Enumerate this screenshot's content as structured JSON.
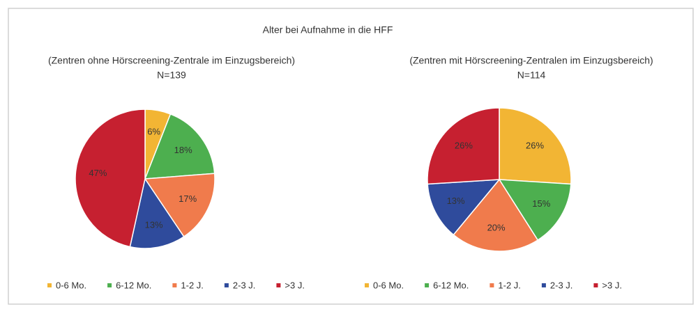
{
  "title": "Alter bei Aufnahme in die HFF",
  "chart_data": [
    {
      "type": "pie",
      "title": "(Zentren ohne Hörscreening-Zentrale im Einzugsbereich)",
      "subtitle": "N=139",
      "categories": [
        "0-6 Mo.",
        "6-12 Mo.",
        "1-2 J.",
        "2-3 J.",
        ">3 J."
      ],
      "values": [
        6,
        18,
        17,
        13,
        47
      ],
      "value_labels": [
        "6%",
        "18%",
        "17%",
        "13%",
        "47%"
      ],
      "colors": [
        "#f2b534",
        "#4daf4f",
        "#f07b4c",
        "#2f4b9c",
        "#c62030"
      ]
    },
    {
      "type": "pie",
      "title": "(Zentren mit Hörscreening-Zentralen im Einzugsbereich)",
      "subtitle": "N=114",
      "categories": [
        "0-6 Mo.",
        "6-12 Mo.",
        "1-2 J.",
        "2-3 J.",
        ">3 J."
      ],
      "values": [
        26,
        15,
        20,
        13,
        26
      ],
      "value_labels": [
        "26%",
        "15%",
        "20%",
        "13%",
        "26%"
      ],
      "colors": [
        "#f2b534",
        "#4daf4f",
        "#f07b4c",
        "#2f4b9c",
        "#c62030"
      ]
    }
  ]
}
